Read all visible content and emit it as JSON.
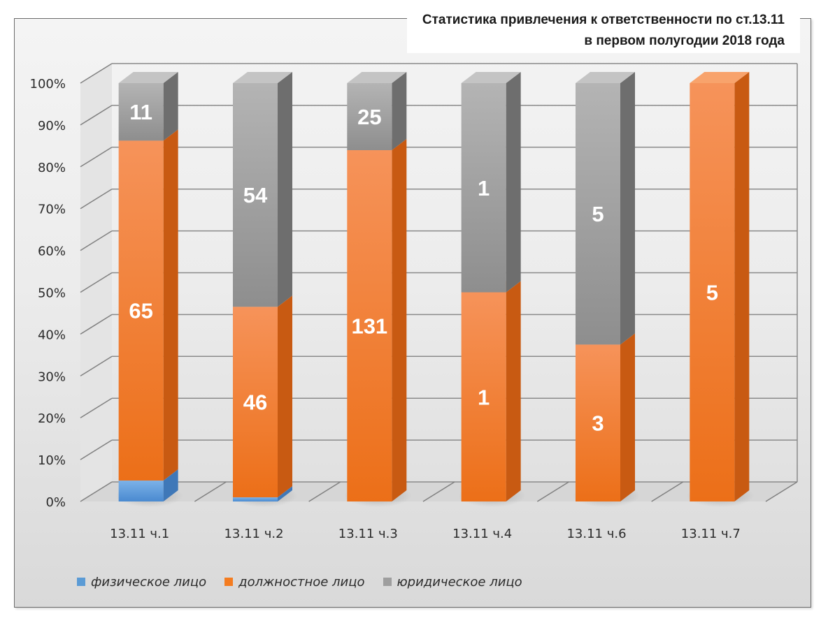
{
  "chart_data": {
    "type": "bar",
    "stacked": "percent",
    "title": "Статистика привлечения к ответственности по ст.13.11 в первом полугодии 2018 года",
    "title_lines": [
      "Статистика привлечения к ответственности по ст.13.11",
      "в первом полугодии 2018 года"
    ],
    "categories": [
      "13.11 ч.1",
      "13.11 ч.2",
      "13.11 ч.3",
      "13.11 ч.4",
      "13.11 ч.6",
      "13.11 ч.7"
    ],
    "series": [
      {
        "name": "физическое лицо",
        "color": "#5b9bd5",
        "values": [
          4,
          1,
          0,
          0,
          0,
          0
        ],
        "labels": [
          "",
          "",
          "",
          "",
          "",
          ""
        ]
      },
      {
        "name": "должностное лицо",
        "color": "#f47c20",
        "values": [
          65,
          46,
          131,
          1,
          3,
          5
        ],
        "labels": [
          "65",
          "46",
          "131",
          "1",
          "3",
          "5"
        ]
      },
      {
        "name": "юридическое лицо",
        "color": "#9e9e9e",
        "values": [
          11,
          54,
          25,
          1,
          5,
          0
        ],
        "labels": [
          "11",
          "54",
          "25",
          "1",
          "5",
          ""
        ]
      }
    ],
    "y_ticks": [
      "0%",
      "10%",
      "20%",
      "30%",
      "40%",
      "50%",
      "60%",
      "70%",
      "80%",
      "90%",
      "100%"
    ],
    "ylim": [
      0,
      100
    ],
    "grid": true,
    "legend_position": "bottom"
  }
}
